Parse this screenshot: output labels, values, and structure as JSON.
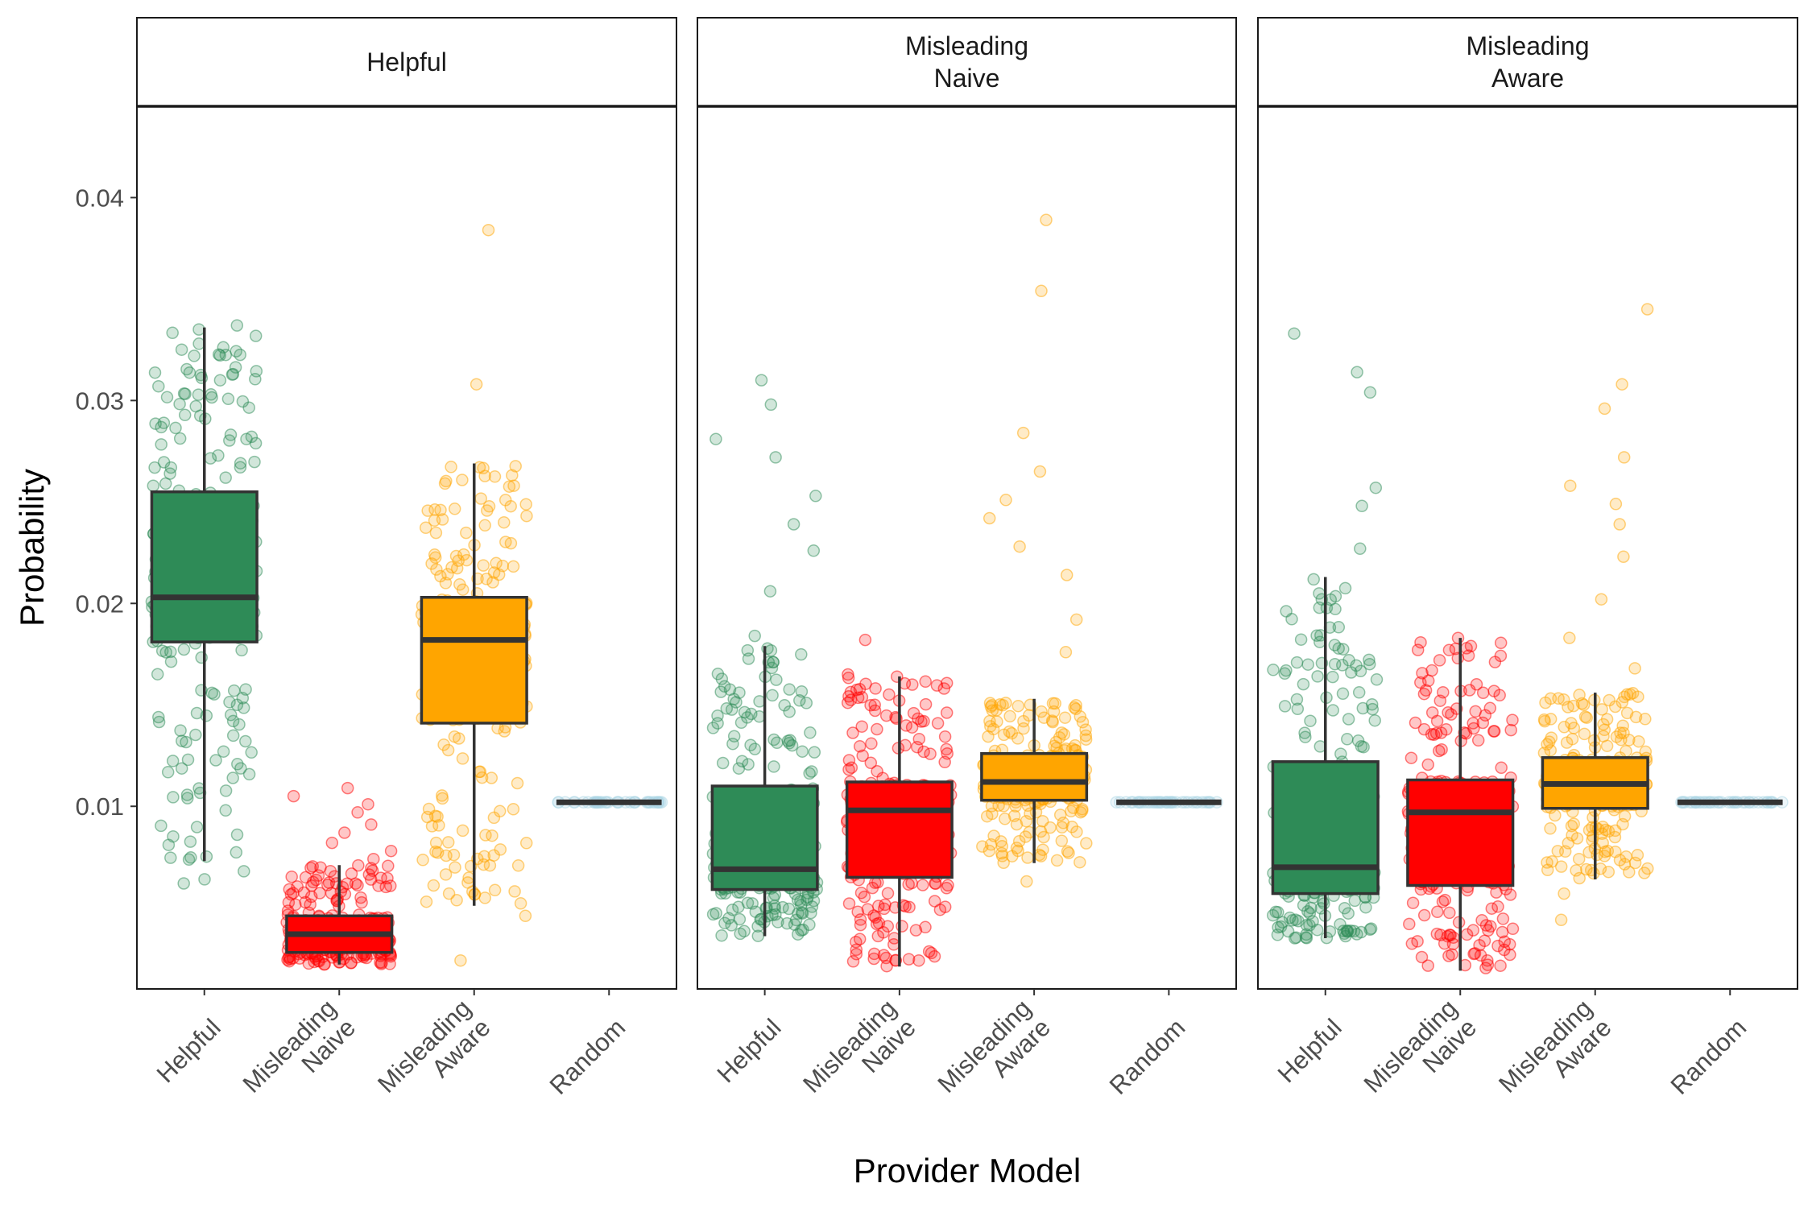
{
  "chart_data": {
    "type": "box",
    "xlabel": "Provider Model",
    "ylabel": "Probability",
    "ylim": [
      0.001,
      0.0445
    ],
    "yticks": [
      "0.01",
      "0.02",
      "0.03",
      "0.04"
    ],
    "ytick_values": [
      0.01,
      0.02,
      0.03,
      0.04
    ],
    "categories": [
      {
        "label": "Helpful",
        "key": "helpful"
      },
      {
        "label": "Misleading\nNaive",
        "key": "naive"
      },
      {
        "label": "Misleading\nAware",
        "key": "aware"
      },
      {
        "label": "Random",
        "key": "random"
      }
    ],
    "colors": {
      "helpful": "#2e8b57",
      "naive": "#ff0000",
      "aware": "#ffa500",
      "random": "#add8e6"
    },
    "grid": false,
    "legend": "none",
    "panels": [
      {
        "strip": "Helpful",
        "boxes": [
          {
            "key": "helpful",
            "lower_whisker": 0.0073,
            "q1": 0.0181,
            "median": 0.0203,
            "q3": 0.0255,
            "upper_whisker": 0.0336,
            "outliers": [
              0.0062,
              0.0064,
              0.0068,
              0.0086,
              0.0098,
              0.0114,
              0.0142,
              0.0157,
              0.0196,
              0.0226,
              0.0258,
              0.0262,
              0.0281,
              0.0291,
              0.0303,
              0.0313,
              0.0322,
              0.0337
            ]
          },
          {
            "key": "naive",
            "lower_whisker": 0.0022,
            "q1": 0.0028,
            "median": 0.0037,
            "q3": 0.0046,
            "upper_whisker": 0.0071,
            "outliers": [
              0.0074,
              0.0078,
              0.0082,
              0.0087,
              0.0091,
              0.0097,
              0.0101,
              0.0105,
              0.0109
            ]
          },
          {
            "key": "aware",
            "lower_whisker": 0.0051,
            "q1": 0.0141,
            "median": 0.0182,
            "q3": 0.0203,
            "upper_whisker": 0.0269,
            "outliers": [
              0.0024,
              0.0046,
              0.0057,
              0.0082,
              0.0114,
              0.0152,
              0.0224,
              0.0246,
              0.0258,
              0.0308,
              0.0384
            ]
          },
          {
            "key": "random",
            "lower_whisker": 0.0102,
            "q1": 0.0102,
            "median": 0.0102,
            "q3": 0.0102,
            "upper_whisker": 0.0102,
            "outliers": []
          }
        ]
      },
      {
        "strip": "Misleading\nNaive",
        "boxes": [
          {
            "key": "helpful",
            "lower_whisker": 0.0036,
            "q1": 0.0059,
            "median": 0.0069,
            "q3": 0.011,
            "upper_whisker": 0.0179,
            "outliers": [
              0.0043,
              0.0127,
              0.0156,
              0.0184,
              0.0206,
              0.0226,
              0.0239,
              0.0253,
              0.0272,
              0.0281,
              0.0298,
              0.031
            ]
          },
          {
            "key": "naive",
            "lower_whisker": 0.0021,
            "q1": 0.0065,
            "median": 0.0098,
            "q3": 0.0112,
            "upper_whisker": 0.0164,
            "outliers": [
              0.0024,
              0.0035,
              0.0048,
              0.0126,
              0.0138,
              0.0151,
              0.0165,
              0.0182
            ]
          },
          {
            "key": "aware",
            "lower_whisker": 0.0072,
            "q1": 0.0103,
            "median": 0.0112,
            "q3": 0.0126,
            "upper_whisker": 0.0153,
            "outliers": [
              0.0063,
              0.0077,
              0.0085,
              0.0176,
              0.0192,
              0.0214,
              0.0228,
              0.0242,
              0.0251,
              0.0265,
              0.0284,
              0.0354,
              0.0389
            ]
          },
          {
            "key": "random",
            "lower_whisker": 0.0102,
            "q1": 0.0102,
            "median": 0.0102,
            "q3": 0.0102,
            "upper_whisker": 0.0102,
            "outliers": []
          }
        ]
      },
      {
        "strip": "Misleading\nAware",
        "boxes": [
          {
            "key": "helpful",
            "lower_whisker": 0.0035,
            "q1": 0.0057,
            "median": 0.007,
            "q3": 0.0122,
            "upper_whisker": 0.0213,
            "outliers": [
              0.0036,
              0.0148,
              0.0166,
              0.0181,
              0.0202,
              0.0227,
              0.0248,
              0.0257,
              0.0304,
              0.0314,
              0.0333
            ]
          },
          {
            "key": "naive",
            "lower_whisker": 0.0019,
            "q1": 0.0061,
            "median": 0.0097,
            "q3": 0.0113,
            "upper_whisker": 0.0183,
            "outliers": [
              0.0027,
              0.0038,
              0.0128,
              0.0136,
              0.0152,
              0.0161,
              0.0177
            ]
          },
          {
            "key": "aware",
            "lower_whisker": 0.0064,
            "q1": 0.0099,
            "median": 0.0111,
            "q3": 0.0124,
            "upper_whisker": 0.0156,
            "outliers": [
              0.0044,
              0.0057,
              0.0074,
              0.0168,
              0.0183,
              0.0202,
              0.0223,
              0.0239,
              0.0249,
              0.0258,
              0.0272,
              0.0296,
              0.0308,
              0.0345
            ]
          },
          {
            "key": "random",
            "lower_whisker": 0.0102,
            "q1": 0.0102,
            "median": 0.0102,
            "q3": 0.0102,
            "upper_whisker": 0.0102,
            "outliers": []
          }
        ]
      }
    ]
  }
}
